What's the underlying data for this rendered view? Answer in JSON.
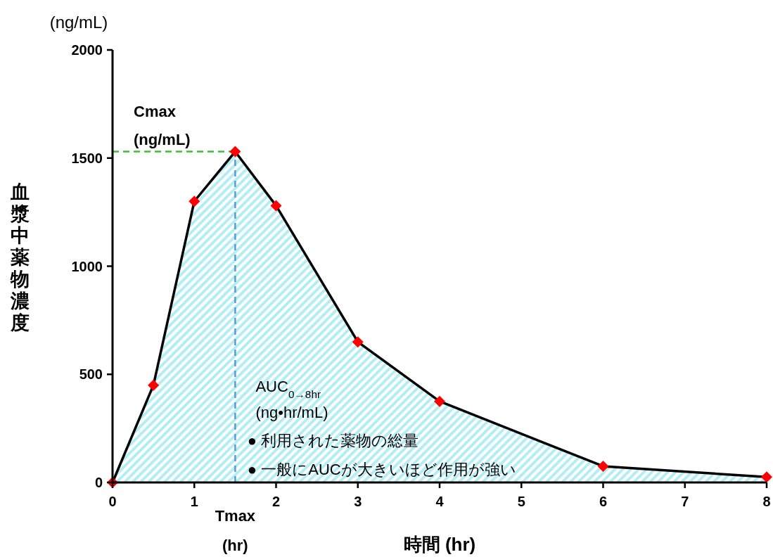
{
  "chart_data": {
    "type": "area",
    "xlabel": "時間 (hr)",
    "ylabel": "血漿中薬物濃度",
    "x": [
      0,
      0.5,
      1,
      1.5,
      2,
      3,
      4,
      6,
      8
    ],
    "series": [
      {
        "color": "#000000",
        "values": [
          0,
          450,
          1300,
          1530,
          1280,
          650,
          375,
          75,
          25
        ]
      },
      {
        "type": "scatter",
        "color": "#ff0000",
        "marker": "diamond",
        "values": [
          0,
          450,
          1300,
          1530,
          1280,
          650,
          375,
          75,
          25
        ]
      }
    ],
    "xlim": [
      0,
      8
    ],
    "xticks": [
      0,
      1,
      2,
      3,
      4,
      5,
      6,
      7,
      8
    ],
    "ylim": [
      0,
      2000
    ],
    "yticks": [
      0,
      500,
      1000,
      1500,
      2000
    ],
    "grid": false,
    "ref_lines": [
      {
        "axis": "y",
        "value": 1530,
        "label": "Cmax\n(ng/mL)",
        "color": "#3cc03c",
        "line_style": "dashed"
      },
      {
        "axis": "x",
        "value": 1.5,
        "label": "Tmax\n(hr)",
        "color": "#5b9bd5",
        "line_style": "dashed"
      }
    ],
    "annotations": [
      "(ng/mL)",
      "AUC$_{0→8hr}$",
      "(ng•hr/mL)",
      "●  利用された薬物の総量",
      "●  一般にAUCが大きいほど作用が強い"
    ]
  }
}
